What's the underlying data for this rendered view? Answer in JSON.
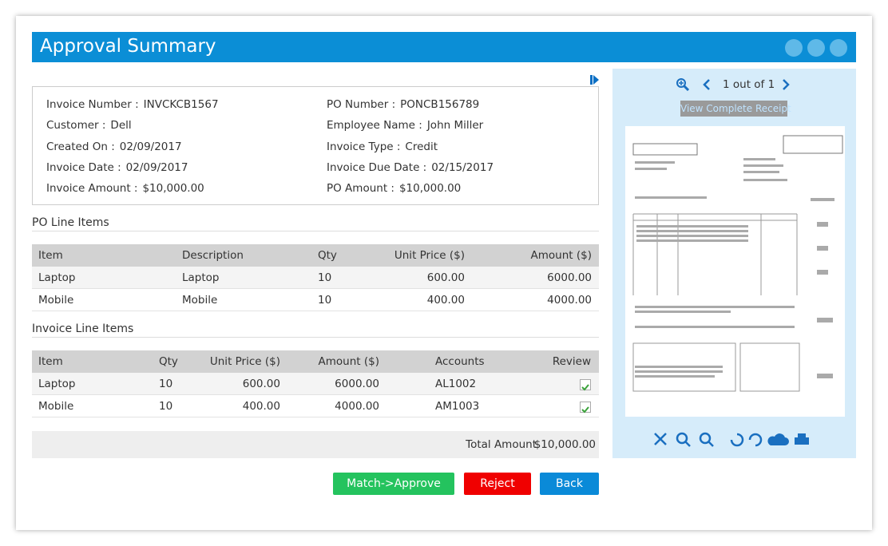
{
  "header": {
    "title": "Approval Summary"
  },
  "details": {
    "left": [
      {
        "label": "Invoice Number :",
        "value": "INVCKCB1567"
      },
      {
        "label": "Customer :",
        "value": "Dell"
      },
      {
        "label": "Created On :",
        "value": "02/09/2017"
      },
      {
        "label": "Invoice Date :",
        "value": "02/09/2017"
      },
      {
        "label": "Invoice Amount :",
        "value": "$10,000.00"
      }
    ],
    "right": [
      {
        "label": "PO Number :",
        "value": "PONCB156789"
      },
      {
        "label": "Employee Name :",
        "value": "John Miller"
      },
      {
        "label": "Invoice Type :",
        "value": "Credit"
      },
      {
        "label": "Invoice Due Date :",
        "value": "02/15/2017"
      },
      {
        "label": "PO Amount :",
        "value": "$10,000.00"
      }
    ]
  },
  "po_table": {
    "title": "PO Line Items",
    "columns": [
      "Item",
      "Description",
      "Qty",
      "Unit Price ($)",
      "Amount ($)"
    ],
    "rows": [
      [
        "Laptop",
        "Laptop",
        "10",
        "600.00",
        "6000.00"
      ],
      [
        "Mobile",
        "Mobile",
        "10",
        "400.00",
        "4000.00"
      ]
    ]
  },
  "invoice_table": {
    "title": "Invoice Line Items",
    "columns": [
      "Item",
      "Qty",
      "Unit Price ($)",
      "Amount ($)",
      "Accounts",
      "Review"
    ],
    "rows": [
      [
        "Laptop",
        "10",
        "600.00",
        "6000.00",
        "AL1002"
      ],
      [
        "Mobile",
        "10",
        "400.00",
        "4000.00",
        "AM1003"
      ]
    ]
  },
  "total": {
    "label": "Total Amount",
    "value": "$10,000.00"
  },
  "buttons": [
    "Match->Approve",
    "Reject",
    "Back"
  ],
  "viewer": {
    "page_indicator": "1 out of 1",
    "view_receipt": "View Complete Receipt"
  }
}
